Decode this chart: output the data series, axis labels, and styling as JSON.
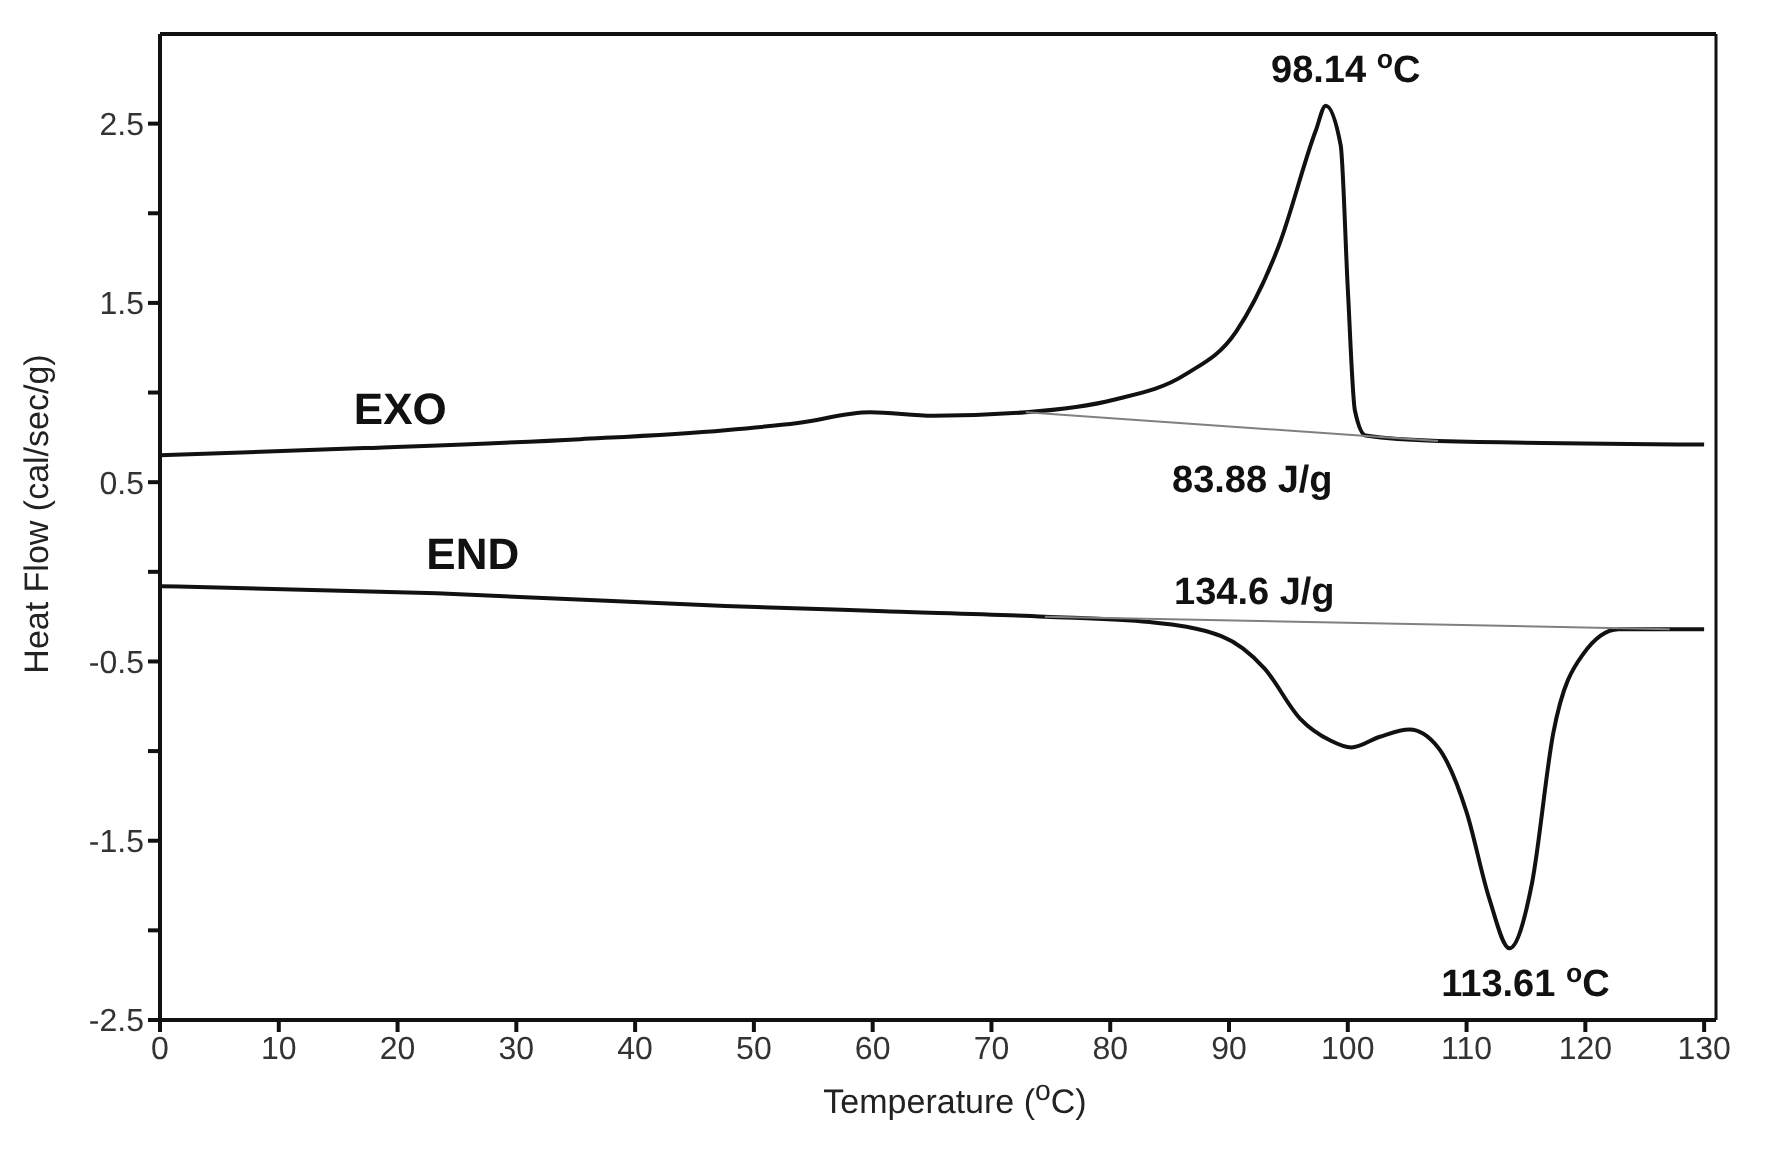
{
  "chart_data": {
    "type": "line",
    "xlabel": "Temperature ($^{o}$C)",
    "ylabel": "Heat Flow (cal/sec/g)",
    "xlim": [
      0,
      131
    ],
    "xticks": [
      0,
      10,
      20,
      30,
      40,
      50,
      60,
      70,
      80,
      90,
      100,
      110,
      120,
      130
    ],
    "ylim": [
      -2.5,
      3.0
    ],
    "yticks": [
      -2.5,
      {
        "value": -2,
        "label": null
      },
      -1.5,
      {
        "value": -1,
        "label": null
      },
      -0.5,
      {
        "value": 0,
        "label": null
      },
      0.5,
      {
        "value": 1,
        "label": null
      },
      1.5,
      {
        "value": 2,
        "label": null
      },
      2.5
    ],
    "legend": false,
    "marker": "none",
    "line_style": "solid",
    "series": [
      {
        "name": "EXO",
        "color": "#111111",
        "x": [
          0,
          17.2,
          35.4,
          47.6,
          53.7,
          59.8,
          65.1,
          72.9,
          80.3,
          86.3,
          90.6,
          94.2,
          97.3,
          98.14,
          99.4,
          100,
          100.6,
          101.5,
          107.6,
          130
        ],
        "values": [
          0.65,
          0.69,
          0.74,
          0.79,
          0.83,
          0.89,
          0.87,
          0.89,
          0.96,
          1.1,
          1.34,
          1.82,
          2.46,
          2.6,
          2.38,
          1.58,
          0.9,
          0.76,
          0.73,
          0.71
        ]
      },
      {
        "name": "END",
        "color": "#111111",
        "x": [
          0,
          23.3,
          47.6,
          61,
          74.5,
          83.3,
          89.4,
          93,
          96,
          98.5,
          100.3,
          102.7,
          105.2,
          107.6,
          110,
          111.9,
          113.61,
          115.5,
          117.3,
          119.8,
          122.8,
          127.1,
          130
        ],
        "values": [
          -0.08,
          -0.12,
          -0.19,
          -0.22,
          -0.25,
          -0.28,
          -0.36,
          -0.54,
          -0.82,
          -0.94,
          -0.98,
          -0.92,
          -0.88,
          -0.98,
          -1.34,
          -1.82,
          -2.1,
          -1.74,
          -0.9,
          -0.46,
          -0.32,
          -0.32,
          -0.32
        ]
      },
      {
        "color": "#808080",
        "x": [
          72.9,
          107.6
        ],
        "values": [
          0.89,
          0.73
        ]
      },
      {
        "color": "#808080",
        "x": [
          74.5,
          127.1
        ],
        "values": [
          -0.25,
          -0.32
        ]
      }
    ],
    "annotations": [
      {
        "text": "98.14 $^{o}$C",
        "x": 98.14,
        "y": 2.6
      },
      "83.88 J/g",
      "134.6 J/g",
      {
        "text": "113.61 $^{o}$C",
        "x": 113.61,
        "y": -2.1
      }
    ]
  }
}
